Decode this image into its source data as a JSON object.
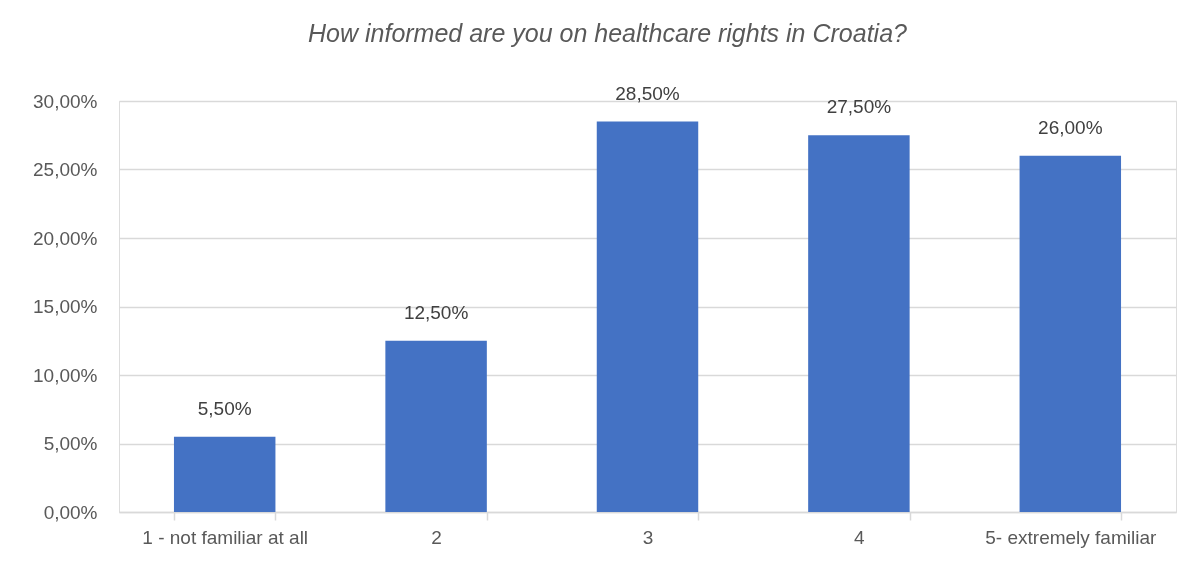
{
  "chart_data": {
    "type": "bar",
    "title": "How informed are you on healthcare rights in Croatia?",
    "categories": [
      "1 - not familiar at all",
      "2",
      "3",
      "4",
      "5- extremely familiar"
    ],
    "values": [
      5.5,
      12.5,
      28.5,
      27.5,
      26
    ],
    "value_labels": [
      "5,50%",
      "12,50%",
      "28,50%",
      "27,50%",
      "26,00%"
    ],
    "color": "#4472c4",
    "ylim": [
      0,
      30
    ],
    "yticks": [
      {
        "value": 0,
        "label": "0,00%"
      },
      {
        "value": 5,
        "label": "5,00%"
      },
      {
        "value": 10,
        "label": "10,00%"
      },
      {
        "value": 15,
        "label": "15,00%"
      },
      {
        "value": 20,
        "label": "20,00%"
      },
      {
        "value": 25,
        "label": "25,00%"
      },
      {
        "value": 30,
        "label": "30,00%"
      }
    ],
    "grid": "y",
    "legend": false
  }
}
